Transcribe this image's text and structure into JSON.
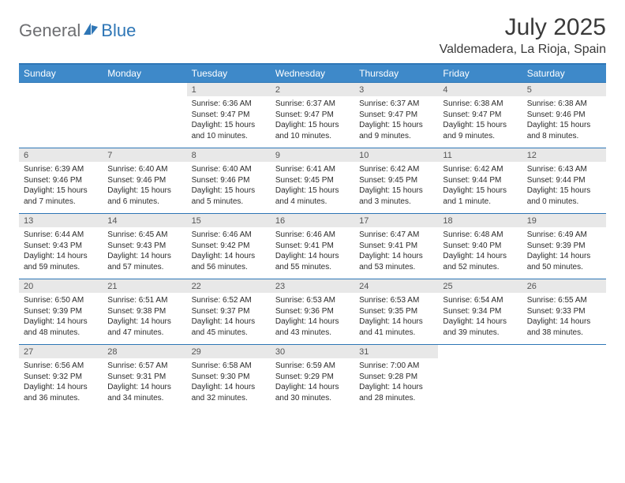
{
  "logo": {
    "text_a": "General",
    "text_b": "Blue"
  },
  "title": "July 2025",
  "location": "Valdemadera, La Rioja, Spain",
  "colors": {
    "brand_blue": "#2e76b6",
    "header_blue": "#3e89c9",
    "logo_gray": "#6d6e71",
    "daynum_bg": "#e8e8e8",
    "text": "#2b2b2b"
  },
  "dayHeaders": [
    "Sunday",
    "Monday",
    "Tuesday",
    "Wednesday",
    "Thursday",
    "Friday",
    "Saturday"
  ],
  "weeks": [
    [
      {
        "empty": true
      },
      {
        "empty": true
      },
      {
        "num": "1",
        "sunrise": "Sunrise: 6:36 AM",
        "sunset": "Sunset: 9:47 PM",
        "daylight": "Daylight: 15 hours and 10 minutes."
      },
      {
        "num": "2",
        "sunrise": "Sunrise: 6:37 AM",
        "sunset": "Sunset: 9:47 PM",
        "daylight": "Daylight: 15 hours and 10 minutes."
      },
      {
        "num": "3",
        "sunrise": "Sunrise: 6:37 AM",
        "sunset": "Sunset: 9:47 PM",
        "daylight": "Daylight: 15 hours and 9 minutes."
      },
      {
        "num": "4",
        "sunrise": "Sunrise: 6:38 AM",
        "sunset": "Sunset: 9:47 PM",
        "daylight": "Daylight: 15 hours and 9 minutes."
      },
      {
        "num": "5",
        "sunrise": "Sunrise: 6:38 AM",
        "sunset": "Sunset: 9:46 PM",
        "daylight": "Daylight: 15 hours and 8 minutes."
      }
    ],
    [
      {
        "num": "6",
        "sunrise": "Sunrise: 6:39 AM",
        "sunset": "Sunset: 9:46 PM",
        "daylight": "Daylight: 15 hours and 7 minutes."
      },
      {
        "num": "7",
        "sunrise": "Sunrise: 6:40 AM",
        "sunset": "Sunset: 9:46 PM",
        "daylight": "Daylight: 15 hours and 6 minutes."
      },
      {
        "num": "8",
        "sunrise": "Sunrise: 6:40 AM",
        "sunset": "Sunset: 9:46 PM",
        "daylight": "Daylight: 15 hours and 5 minutes."
      },
      {
        "num": "9",
        "sunrise": "Sunrise: 6:41 AM",
        "sunset": "Sunset: 9:45 PM",
        "daylight": "Daylight: 15 hours and 4 minutes."
      },
      {
        "num": "10",
        "sunrise": "Sunrise: 6:42 AM",
        "sunset": "Sunset: 9:45 PM",
        "daylight": "Daylight: 15 hours and 3 minutes."
      },
      {
        "num": "11",
        "sunrise": "Sunrise: 6:42 AM",
        "sunset": "Sunset: 9:44 PM",
        "daylight": "Daylight: 15 hours and 1 minute."
      },
      {
        "num": "12",
        "sunrise": "Sunrise: 6:43 AM",
        "sunset": "Sunset: 9:44 PM",
        "daylight": "Daylight: 15 hours and 0 minutes."
      }
    ],
    [
      {
        "num": "13",
        "sunrise": "Sunrise: 6:44 AM",
        "sunset": "Sunset: 9:43 PM",
        "daylight": "Daylight: 14 hours and 59 minutes."
      },
      {
        "num": "14",
        "sunrise": "Sunrise: 6:45 AM",
        "sunset": "Sunset: 9:43 PM",
        "daylight": "Daylight: 14 hours and 57 minutes."
      },
      {
        "num": "15",
        "sunrise": "Sunrise: 6:46 AM",
        "sunset": "Sunset: 9:42 PM",
        "daylight": "Daylight: 14 hours and 56 minutes."
      },
      {
        "num": "16",
        "sunrise": "Sunrise: 6:46 AM",
        "sunset": "Sunset: 9:41 PM",
        "daylight": "Daylight: 14 hours and 55 minutes."
      },
      {
        "num": "17",
        "sunrise": "Sunrise: 6:47 AM",
        "sunset": "Sunset: 9:41 PM",
        "daylight": "Daylight: 14 hours and 53 minutes."
      },
      {
        "num": "18",
        "sunrise": "Sunrise: 6:48 AM",
        "sunset": "Sunset: 9:40 PM",
        "daylight": "Daylight: 14 hours and 52 minutes."
      },
      {
        "num": "19",
        "sunrise": "Sunrise: 6:49 AM",
        "sunset": "Sunset: 9:39 PM",
        "daylight": "Daylight: 14 hours and 50 minutes."
      }
    ],
    [
      {
        "num": "20",
        "sunrise": "Sunrise: 6:50 AM",
        "sunset": "Sunset: 9:39 PM",
        "daylight": "Daylight: 14 hours and 48 minutes."
      },
      {
        "num": "21",
        "sunrise": "Sunrise: 6:51 AM",
        "sunset": "Sunset: 9:38 PM",
        "daylight": "Daylight: 14 hours and 47 minutes."
      },
      {
        "num": "22",
        "sunrise": "Sunrise: 6:52 AM",
        "sunset": "Sunset: 9:37 PM",
        "daylight": "Daylight: 14 hours and 45 minutes."
      },
      {
        "num": "23",
        "sunrise": "Sunrise: 6:53 AM",
        "sunset": "Sunset: 9:36 PM",
        "daylight": "Daylight: 14 hours and 43 minutes."
      },
      {
        "num": "24",
        "sunrise": "Sunrise: 6:53 AM",
        "sunset": "Sunset: 9:35 PM",
        "daylight": "Daylight: 14 hours and 41 minutes."
      },
      {
        "num": "25",
        "sunrise": "Sunrise: 6:54 AM",
        "sunset": "Sunset: 9:34 PM",
        "daylight": "Daylight: 14 hours and 39 minutes."
      },
      {
        "num": "26",
        "sunrise": "Sunrise: 6:55 AM",
        "sunset": "Sunset: 9:33 PM",
        "daylight": "Daylight: 14 hours and 38 minutes."
      }
    ],
    [
      {
        "num": "27",
        "sunrise": "Sunrise: 6:56 AM",
        "sunset": "Sunset: 9:32 PM",
        "daylight": "Daylight: 14 hours and 36 minutes."
      },
      {
        "num": "28",
        "sunrise": "Sunrise: 6:57 AM",
        "sunset": "Sunset: 9:31 PM",
        "daylight": "Daylight: 14 hours and 34 minutes."
      },
      {
        "num": "29",
        "sunrise": "Sunrise: 6:58 AM",
        "sunset": "Sunset: 9:30 PM",
        "daylight": "Daylight: 14 hours and 32 minutes."
      },
      {
        "num": "30",
        "sunrise": "Sunrise: 6:59 AM",
        "sunset": "Sunset: 9:29 PM",
        "daylight": "Daylight: 14 hours and 30 minutes."
      },
      {
        "num": "31",
        "sunrise": "Sunrise: 7:00 AM",
        "sunset": "Sunset: 9:28 PM",
        "daylight": "Daylight: 14 hours and 28 minutes."
      },
      {
        "empty": true
      },
      {
        "empty": true
      }
    ]
  ]
}
